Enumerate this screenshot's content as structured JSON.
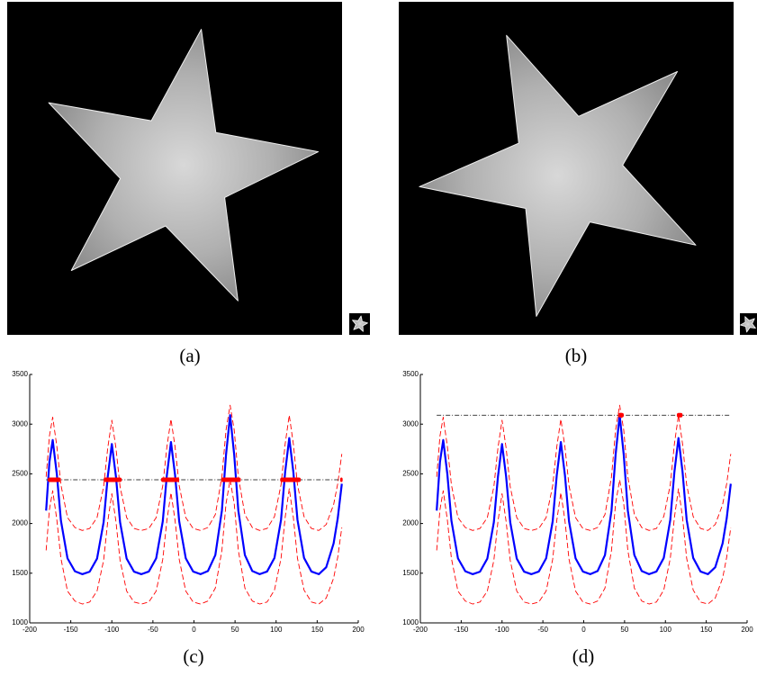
{
  "image_panels": [
    {
      "caption": "(a)"
    },
    {
      "caption": "(b)"
    }
  ],
  "chart_data": [
    {
      "type": "line",
      "caption": "(c)",
      "x": [
        -180,
        -176,
        -172,
        -167,
        -162,
        -154,
        -145,
        -136,
        -127,
        -118,
        -110,
        -105,
        -100,
        -95,
        -90,
        -82,
        -73,
        -64,
        -55,
        -46,
        -38,
        -33,
        -28,
        -23,
        -18,
        -10,
        -1,
        8,
        17,
        26,
        34,
        39,
        44,
        49,
        54,
        62,
        71,
        80,
        89,
        98,
        106,
        111,
        116,
        121,
        126,
        134,
        143,
        152,
        161,
        170,
        175,
        180
      ],
      "series": [
        {
          "color": "#0000ff",
          "dashed": false,
          "values": [
            2130,
            2620,
            2840,
            2500,
            2030,
            1650,
            1520,
            1490,
            1515,
            1647,
            2014,
            2472,
            2800,
            2472,
            2014,
            1647,
            1516,
            1490,
            1517,
            1650,
            2022,
            2487,
            2820,
            2487,
            2022,
            1650,
            1517,
            1490,
            1522,
            1682,
            2130,
            2690,
            3090,
            2690,
            2130,
            1682,
            1522,
            1490,
            1517,
            1654,
            2038,
            2518,
            2860,
            2518,
            2038,
            1654,
            1517,
            1490,
            1560,
            1800,
            2050,
            2400
          ]
        },
        {
          "color": "#ff0000",
          "dashed": true,
          "values": [
            2470,
            2880,
            3070,
            2780,
            2390,
            2060,
            1960,
            1930,
            1950,
            2060,
            2370,
            2760,
            3040,
            2760,
            2370,
            2060,
            1950,
            1930,
            1950,
            2060,
            2380,
            2770,
            3050,
            2770,
            2380,
            2060,
            1950,
            1930,
            1960,
            2090,
            2470,
            2940,
            3190,
            2940,
            2470,
            2090,
            1960,
            1930,
            1950,
            2070,
            2390,
            2800,
            3090,
            2800,
            2390,
            2070,
            1950,
            1930,
            1990,
            2190,
            2400,
            2700
          ]
        },
        {
          "color": "#ff0000",
          "dashed": true,
          "values": [
            1730,
            2140,
            2330,
            2040,
            1650,
            1320,
            1220,
            1190,
            1210,
            1320,
            1630,
            2020,
            2300,
            2020,
            1630,
            1320,
            1210,
            1190,
            1210,
            1320,
            1640,
            2030,
            2310,
            2030,
            1640,
            1320,
            1210,
            1190,
            1220,
            1350,
            1730,
            2200,
            2440,
            2200,
            1730,
            1350,
            1220,
            1190,
            1210,
            1330,
            1650,
            2060,
            2350,
            2060,
            1650,
            1330,
            1210,
            1190,
            1250,
            1450,
            1660,
            1960
          ]
        }
      ],
      "threshold": 2440,
      "threshold_color": "#000000",
      "detections": [
        [
          -178,
          -162
        ],
        [
          -110,
          -88
        ],
        [
          -40,
          -18
        ],
        [
          33,
          57
        ],
        [
          105,
          130
        ],
        [
          178,
          181
        ]
      ],
      "detection_color": "#ff0000",
      "xlim": [
        -200,
        200
      ],
      "xticks": [
        -200,
        -150,
        -100,
        -50,
        0,
        50,
        100,
        150,
        200
      ],
      "ylim": [
        1000,
        3500
      ],
      "yticks": [
        1000,
        1500,
        2000,
        2500,
        3000,
        3500
      ]
    },
    {
      "type": "line",
      "caption": "(d)",
      "x": [
        -180,
        -176,
        -172,
        -167,
        -162,
        -154,
        -145,
        -136,
        -127,
        -118,
        -110,
        -105,
        -100,
        -95,
        -90,
        -82,
        -73,
        -64,
        -55,
        -46,
        -38,
        -33,
        -28,
        -23,
        -18,
        -10,
        -1,
        8,
        17,
        26,
        34,
        39,
        44,
        49,
        54,
        62,
        71,
        80,
        89,
        98,
        106,
        111,
        116,
        121,
        126,
        134,
        143,
        152,
        161,
        170,
        175,
        180
      ],
      "series": [
        {
          "color": "#0000ff",
          "dashed": false,
          "values": [
            2130,
            2620,
            2840,
            2500,
            2030,
            1650,
            1520,
            1490,
            1515,
            1647,
            2014,
            2472,
            2800,
            2472,
            2014,
            1647,
            1516,
            1490,
            1517,
            1650,
            2022,
            2487,
            2820,
            2487,
            2022,
            1650,
            1517,
            1490,
            1522,
            1682,
            2130,
            2690,
            3090,
            2690,
            2130,
            1682,
            1522,
            1490,
            1517,
            1654,
            2038,
            2518,
            2860,
            2518,
            2038,
            1654,
            1517,
            1490,
            1560,
            1800,
            2050,
            2400
          ]
        },
        {
          "color": "#ff0000",
          "dashed": true,
          "values": [
            2470,
            2880,
            3070,
            2780,
            2390,
            2060,
            1960,
            1930,
            1950,
            2060,
            2370,
            2760,
            3040,
            2760,
            2370,
            2060,
            1950,
            1930,
            1950,
            2060,
            2380,
            2770,
            3050,
            2770,
            2380,
            2060,
            1950,
            1930,
            1960,
            2090,
            2470,
            2940,
            3190,
            2940,
            2470,
            2090,
            1960,
            1930,
            1950,
            2070,
            2390,
            2800,
            3090,
            2800,
            2390,
            2070,
            1950,
            1930,
            1990,
            2190,
            2400,
            2700
          ]
        },
        {
          "color": "#ff0000",
          "dashed": true,
          "values": [
            1730,
            2140,
            2330,
            2040,
            1650,
            1320,
            1220,
            1190,
            1210,
            1320,
            1630,
            2020,
            2300,
            2020,
            1630,
            1320,
            1210,
            1190,
            1210,
            1320,
            1640,
            2030,
            2310,
            2030,
            1640,
            1320,
            1210,
            1190,
            1220,
            1350,
            1730,
            2200,
            2440,
            2200,
            1730,
            1350,
            1220,
            1190,
            1210,
            1330,
            1650,
            2060,
            2350,
            2060,
            1650,
            1330,
            1210,
            1190,
            1250,
            1450,
            1660,
            1960
          ]
        }
      ],
      "threshold": 3090,
      "threshold_color": "#000000",
      "detections": [
        [
          42,
          49
        ],
        [
          114,
          121
        ]
      ],
      "detection_color": "#ff0000",
      "xlim": [
        -200,
        200
      ],
      "xticks": [
        -200,
        -150,
        -100,
        -50,
        0,
        50,
        100,
        150,
        200
      ],
      "ylim": [
        1000,
        3500
      ],
      "yticks": [
        1000,
        1500,
        2000,
        2500,
        3000,
        3500
      ]
    }
  ]
}
